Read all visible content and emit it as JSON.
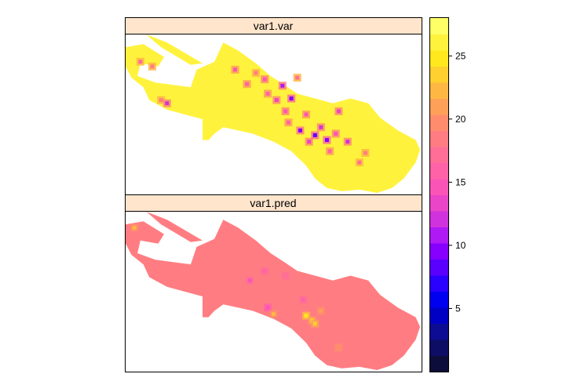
{
  "chart_data": {
    "type": "heatmap",
    "panels": [
      {
        "name": "var1.var",
        "description_values": "mostly yellow (approx 26-28) with scattered low spots near observation locations (approx 10-18)",
        "background_value": 26.5,
        "hotspots": [
          {
            "x": 0.05,
            "y": 0.17,
            "value": 17
          },
          {
            "x": 0.09,
            "y": 0.2,
            "value": 19
          },
          {
            "x": 0.12,
            "y": 0.41,
            "value": 18
          },
          {
            "x": 0.14,
            "y": 0.43,
            "value": 12
          },
          {
            "x": 0.37,
            "y": 0.22,
            "value": 15
          },
          {
            "x": 0.41,
            "y": 0.31,
            "value": 16
          },
          {
            "x": 0.44,
            "y": 0.24,
            "value": 18
          },
          {
            "x": 0.47,
            "y": 0.28,
            "value": 14
          },
          {
            "x": 0.48,
            "y": 0.37,
            "value": 16
          },
          {
            "x": 0.51,
            "y": 0.41,
            "value": 13
          },
          {
            "x": 0.53,
            "y": 0.32,
            "value": 11
          },
          {
            "x": 0.54,
            "y": 0.48,
            "value": 14
          },
          {
            "x": 0.55,
            "y": 0.55,
            "value": 16
          },
          {
            "x": 0.56,
            "y": 0.4,
            "value": 9
          },
          {
            "x": 0.58,
            "y": 0.27,
            "value": 17
          },
          {
            "x": 0.59,
            "y": 0.6,
            "value": 10
          },
          {
            "x": 0.61,
            "y": 0.5,
            "value": 15
          },
          {
            "x": 0.62,
            "y": 0.67,
            "value": 13
          },
          {
            "x": 0.64,
            "y": 0.63,
            "value": 8
          },
          {
            "x": 0.66,
            "y": 0.58,
            "value": 12
          },
          {
            "x": 0.68,
            "y": 0.66,
            "value": 9
          },
          {
            "x": 0.69,
            "y": 0.73,
            "value": 16
          },
          {
            "x": 0.71,
            "y": 0.62,
            "value": 14
          },
          {
            "x": 0.72,
            "y": 0.48,
            "value": 13
          },
          {
            "x": 0.75,
            "y": 0.67,
            "value": 12
          },
          {
            "x": 0.79,
            "y": 0.8,
            "value": 17
          },
          {
            "x": 0.81,
            "y": 0.74,
            "value": 18
          }
        ]
      },
      {
        "name": "var1.pred",
        "description_values": "mostly pink (approx 18-19) with a few purple lows and yellow highs",
        "background_value": 18.5,
        "hotspots": [
          {
            "x": 0.03,
            "y": 0.1,
            "value": 22
          },
          {
            "x": 0.42,
            "y": 0.43,
            "value": 15
          },
          {
            "x": 0.47,
            "y": 0.37,
            "value": 16
          },
          {
            "x": 0.48,
            "y": 0.6,
            "value": 14
          },
          {
            "x": 0.5,
            "y": 0.64,
            "value": 22
          },
          {
            "x": 0.54,
            "y": 0.4,
            "value": 17
          },
          {
            "x": 0.6,
            "y": 0.55,
            "value": 16
          },
          {
            "x": 0.61,
            "y": 0.65,
            "value": 25
          },
          {
            "x": 0.63,
            "y": 0.68,
            "value": 23
          },
          {
            "x": 0.64,
            "y": 0.7,
            "value": 24
          },
          {
            "x": 0.66,
            "y": 0.62,
            "value": 21
          },
          {
            "x": 0.72,
            "y": 0.85,
            "value": 20
          }
        ]
      }
    ],
    "colorbar": {
      "min": 0,
      "max": 28,
      "ticks": [
        5,
        10,
        15,
        20,
        25
      ],
      "levels": 20,
      "palette": [
        "#0D0D3A",
        "#0D0D65",
        "#0D0D93",
        "#0000C5",
        "#0000F1",
        "#2A00FF",
        "#5A00FF",
        "#8500FF",
        "#AF1AF4",
        "#D032DB",
        "#EA45C6",
        "#FA55B6",
        "#FF62A7",
        "#FF6E96",
        "#FF7D82",
        "#FF8D6D",
        "#FFA058",
        "#FFB744",
        "#FFD030",
        "#FFE81E",
        "#FFF23C",
        "#FFFF66"
      ]
    }
  },
  "colors": {
    "strip_background": "#FFE5CC",
    "border": "#000000"
  }
}
